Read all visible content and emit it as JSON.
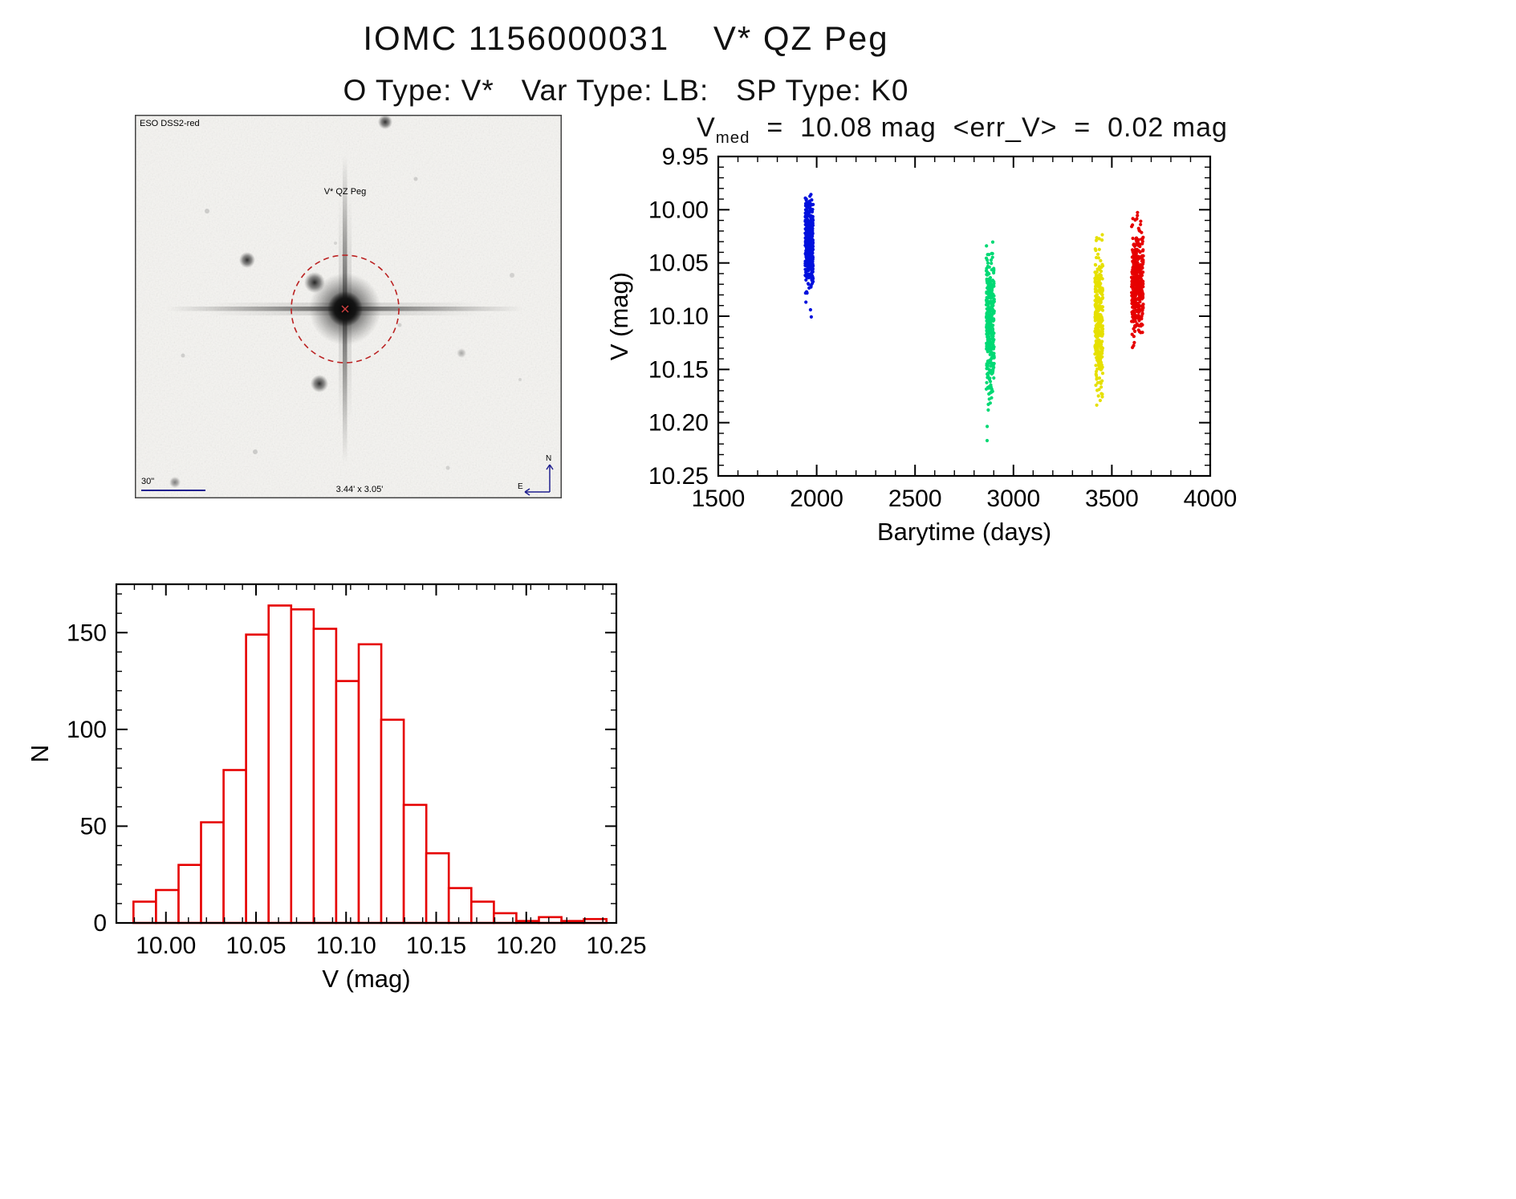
{
  "page": {
    "title": "IOMC 1156000031    V* QZ Peg",
    "subtitle": "O Type: V*   Var Type: LB:   SP Type: K0"
  },
  "finding_chart": {
    "survey_label": "ESO DSS2-red",
    "star_label": "V* QZ Peg",
    "scale_label": "30\"",
    "fov_label": "3.44' x 3.05'",
    "north_label": "N",
    "east_label": "E",
    "annotation_color": "#20208f",
    "marker_color": "#bb2222"
  },
  "lightcurve_title": {
    "var": "V",
    "sub": "med",
    "rest": "  =  10.08 mag  <err_V>  =  0.02 mag"
  },
  "chart_data": [
    {
      "type": "scatter",
      "name": "lightcurve",
      "title": "V_med = 10.08 mag  <err_V> = 0.02 mag",
      "v_med_mag": 10.08,
      "err_v_mag": 0.02,
      "xlabel": "Barytime (days)",
      "ylabel": "V (mag)",
      "xlim": [
        1500,
        4000
      ],
      "ytop": 9.95,
      "ybottom": 10.25,
      "xticks": [
        1500,
        2000,
        2500,
        3000,
        3500,
        4000
      ],
      "xtick_labels": [
        "1500",
        "2000",
        "2500",
        "3000",
        "3500",
        "4000"
      ],
      "yticks": [
        9.95,
        10.0,
        10.05,
        10.1,
        10.15,
        10.2,
        10.25
      ],
      "ytick_labels": [
        "9.95",
        "10.00",
        "10.05",
        "10.10",
        "10.15",
        "10.20",
        "10.25"
      ],
      "xminor": 100,
      "yminor": 0.01,
      "grid": false,
      "clusters": [
        {
          "name": "epoch-1",
          "color": "#0010dd",
          "x_center": 1962,
          "x_spread": 20,
          "v_mean": 10.03,
          "v_sigma": 0.022,
          "v_min": 9.982,
          "v_max": 10.102,
          "n": 420
        },
        {
          "name": "epoch-2",
          "color": "#00d974",
          "x_center": 2882,
          "x_spread": 20,
          "v_mean": 10.108,
          "v_sigma": 0.036,
          "v_min": 10.028,
          "v_max": 10.228,
          "n": 320
        },
        {
          "name": "epoch-3",
          "color": "#e6e000",
          "x_center": 3434,
          "x_spread": 20,
          "v_mean": 10.1,
          "v_sigma": 0.032,
          "v_min": 10.016,
          "v_max": 10.185,
          "n": 320
        },
        {
          "name": "epoch-4",
          "color": "#e60000",
          "x_center": 3630,
          "x_spread": 30,
          "v_mean": 10.068,
          "v_sigma": 0.026,
          "v_min": 9.988,
          "v_max": 10.135,
          "n": 380
        }
      ]
    },
    {
      "type": "bar",
      "name": "magnitude-histogram",
      "xlabel": "V (mag)",
      "ylabel": "N",
      "xlim": [
        9.9725,
        10.25
      ],
      "ytop": 175,
      "ybottom": 0,
      "xticks": [
        10.0,
        10.05,
        10.1,
        10.15,
        10.2,
        10.25
      ],
      "xtick_labels": [
        "10.00",
        "10.05",
        "10.10",
        "10.15",
        "10.20",
        "10.25"
      ],
      "yticks": [
        0,
        50,
        100,
        150
      ],
      "ytick_labels": [
        "0",
        "50",
        "100",
        "150"
      ],
      "xminor": 0.01,
      "yminor": 10,
      "grid": false,
      "bin_start": 9.982,
      "bin_width": 0.0125,
      "counts": [
        11,
        17,
        30,
        52,
        79,
        149,
        164,
        162,
        152,
        125,
        144,
        105,
        61,
        36,
        18,
        11,
        5,
        1,
        3,
        1,
        2
      ],
      "color": "#e60000"
    }
  ]
}
